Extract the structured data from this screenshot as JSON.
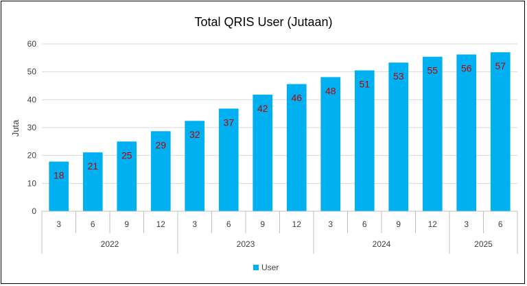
{
  "chart_data": {
    "type": "bar",
    "title": "Total QRIS User (Jutaan)",
    "ylabel": "Juta",
    "xlabel": "",
    "ylim": [
      0,
      60
    ],
    "yticks": [
      0,
      10,
      20,
      30,
      40,
      50,
      60
    ],
    "grid": true,
    "legend_position": "bottom",
    "bar_color": "#00b0f0",
    "label_color": "#c00000",
    "categories": [
      "3",
      "6",
      "9",
      "12",
      "3",
      "6",
      "9",
      "12",
      "3",
      "6",
      "9",
      "12",
      "3",
      "6"
    ],
    "groups": [
      {
        "label": "2022",
        "count": 4
      },
      {
        "label": "2023",
        "count": 4
      },
      {
        "label": "2024",
        "count": 4
      },
      {
        "label": "2025",
        "count": 2
      }
    ],
    "series": [
      {
        "name": "User",
        "values": [
          17.8,
          21.1,
          25.0,
          28.7,
          32.4,
          36.8,
          41.8,
          45.6,
          48.1,
          50.5,
          53.3,
          55.4,
          56.2,
          57.0
        ],
        "labels": [
          "18",
          "21",
          "25",
          "29",
          "32",
          "37",
          "42",
          "46",
          "48",
          "51",
          "53",
          "55",
          "56",
          "57"
        ]
      }
    ]
  }
}
